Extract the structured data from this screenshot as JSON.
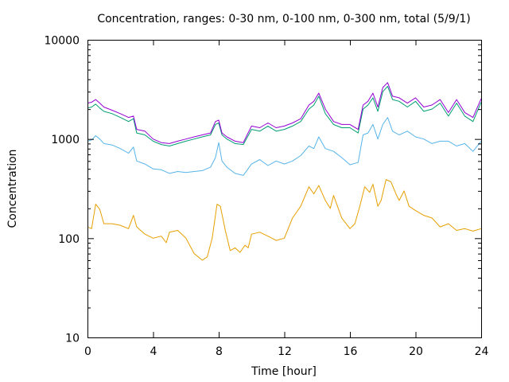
{
  "chart_data": {
    "type": "line",
    "title": "Concentration, ranges: 0-30 nm, 0-100 nm, 0-300 nm, total (5/9/1)",
    "xlabel": "Time [hour]",
    "ylabel": "Concentration",
    "xlim": [
      0,
      24
    ],
    "ylim": [
      10,
      10000
    ],
    "yscale": "log",
    "grid": false,
    "x_ticks": [
      0,
      4,
      8,
      12,
      16,
      20,
      24
    ],
    "y_ticks": [
      10,
      100,
      1000,
      10000
    ],
    "series": [
      {
        "color": "#e69f00",
        "x": [
          0,
          0.25,
          0.5,
          0.75,
          1,
          1.5,
          2,
          2.5,
          2.8,
          3,
          3.5,
          4,
          4.5,
          4.8,
          5,
          5.5,
          6,
          6.5,
          7,
          7.3,
          7.6,
          7.9,
          8.1,
          8.4,
          8.7,
          9,
          9.3,
          9.6,
          9.8,
          10,
          10.5,
          11,
          11.5,
          12,
          12.5,
          13,
          13.5,
          13.8,
          14.1,
          14.5,
          14.8,
          15,
          15.5,
          16,
          16.3,
          16.6,
          16.9,
          17.2,
          17.4,
          17.7,
          17.9,
          18.2,
          18.5,
          18.8,
          19,
          19.3,
          19.6,
          20,
          20.5,
          21,
          21.5,
          22,
          22.5,
          23,
          23.5,
          24
        ],
        "values": [
          130,
          125,
          220,
          195,
          140,
          140,
          135,
          125,
          170,
          130,
          110,
          100,
          105,
          90,
          115,
          120,
          100,
          70,
          60,
          65,
          100,
          220,
          210,
          120,
          75,
          80,
          72,
          85,
          80,
          110,
          115,
          105,
          95,
          100,
          160,
          210,
          330,
          280,
          340,
          240,
          200,
          270,
          160,
          125,
          140,
          210,
          330,
          290,
          350,
          210,
          240,
          390,
          370,
          280,
          240,
          300,
          210,
          190,
          170,
          160,
          130,
          140,
          120,
          125,
          118,
          125
        ]
      },
      {
        "color": "#56b4e9",
        "x": [
          0,
          0.25,
          0.5,
          0.75,
          1,
          1.5,
          2,
          2.5,
          2.8,
          3,
          3.5,
          4,
          4.5,
          5,
          5.5,
          6,
          6.5,
          7,
          7.5,
          7.8,
          8,
          8.2,
          8.5,
          9,
          9.5,
          10,
          10.5,
          11,
          11.5,
          12,
          12.5,
          13,
          13.5,
          13.8,
          14.1,
          14.5,
          15,
          15.5,
          16,
          16.5,
          16.8,
          17.1,
          17.4,
          17.7,
          18,
          18.3,
          18.6,
          19,
          19.5,
          20,
          20.5,
          21,
          21.5,
          22,
          22.5,
          23,
          23.5,
          24
        ],
        "values": [
          950,
          980,
          1080,
          1000,
          900,
          870,
          800,
          720,
          830,
          600,
          560,
          500,
          490,
          450,
          470,
          460,
          470,
          480,
          520,
          650,
          920,
          600,
          520,
          450,
          430,
          560,
          620,
          540,
          600,
          560,
          600,
          680,
          850,
          800,
          1050,
          800,
          750,
          650,
          550,
          580,
          1100,
          1150,
          1400,
          1000,
          1400,
          1650,
          1200,
          1100,
          1200,
          1050,
          1000,
          900,
          950,
          950,
          850,
          900,
          750,
          950
        ]
      },
      {
        "color": "#009e73",
        "x": [
          0,
          0.25,
          0.5,
          0.75,
          1,
          1.5,
          2,
          2.5,
          2.8,
          3,
          3.5,
          4,
          4.5,
          5,
          5.5,
          6,
          6.5,
          7,
          7.5,
          7.8,
          8,
          8.2,
          8.5,
          9,
          9.5,
          10,
          10.5,
          11,
          11.5,
          12,
          12.5,
          13,
          13.5,
          13.8,
          14.1,
          14.5,
          15,
          15.5,
          16,
          16.5,
          16.8,
          17.1,
          17.4,
          17.7,
          18,
          18.3,
          18.6,
          19,
          19.5,
          20,
          20.5,
          21,
          21.5,
          22,
          22.5,
          23,
          23.5,
          24
        ],
        "values": [
          2050,
          2100,
          2250,
          2050,
          1900,
          1800,
          1650,
          1500,
          1600,
          1150,
          1100,
          950,
          880,
          850,
          900,
          950,
          1000,
          1050,
          1100,
          1400,
          1450,
          1100,
          1000,
          900,
          880,
          1250,
          1200,
          1350,
          1200,
          1250,
          1350,
          1500,
          2000,
          2200,
          2700,
          1800,
          1400,
          1300,
          1300,
          1150,
          2000,
          2200,
          2600,
          1900,
          3000,
          3400,
          2500,
          2400,
          2100,
          2400,
          1900,
          2000,
          2300,
          1700,
          2300,
          1700,
          1500,
          2350
        ]
      },
      {
        "color": "#9400d3",
        "x": [
          0,
          0.25,
          0.5,
          0.75,
          1,
          1.5,
          2,
          2.5,
          2.8,
          3,
          3.5,
          4,
          4.5,
          5,
          5.5,
          6,
          6.5,
          7,
          7.5,
          7.8,
          8,
          8.2,
          8.5,
          9,
          9.5,
          10,
          10.5,
          11,
          11.5,
          12,
          12.5,
          13,
          13.5,
          13.8,
          14.1,
          14.5,
          15,
          15.5,
          16,
          16.5,
          16.8,
          17.1,
          17.4,
          17.7,
          18,
          18.3,
          18.6,
          19,
          19.5,
          20,
          20.5,
          21,
          21.5,
          22,
          22.5,
          23,
          23.5,
          24
        ],
        "values": [
          2300,
          2350,
          2500,
          2300,
          2100,
          1950,
          1800,
          1650,
          1700,
          1250,
          1200,
          1000,
          920,
          900,
          950,
          1000,
          1050,
          1100,
          1150,
          1500,
          1550,
          1150,
          1050,
          950,
          920,
          1350,
          1300,
          1450,
          1300,
          1350,
          1450,
          1600,
          2200,
          2400,
          2900,
          2000,
          1500,
          1400,
          1400,
          1250,
          2200,
          2400,
          2900,
          2100,
          3300,
          3700,
          2700,
          2600,
          2300,
          2600,
          2100,
          2200,
          2500,
          1850,
          2500,
          1850,
          1650,
          2550
        ]
      }
    ]
  }
}
